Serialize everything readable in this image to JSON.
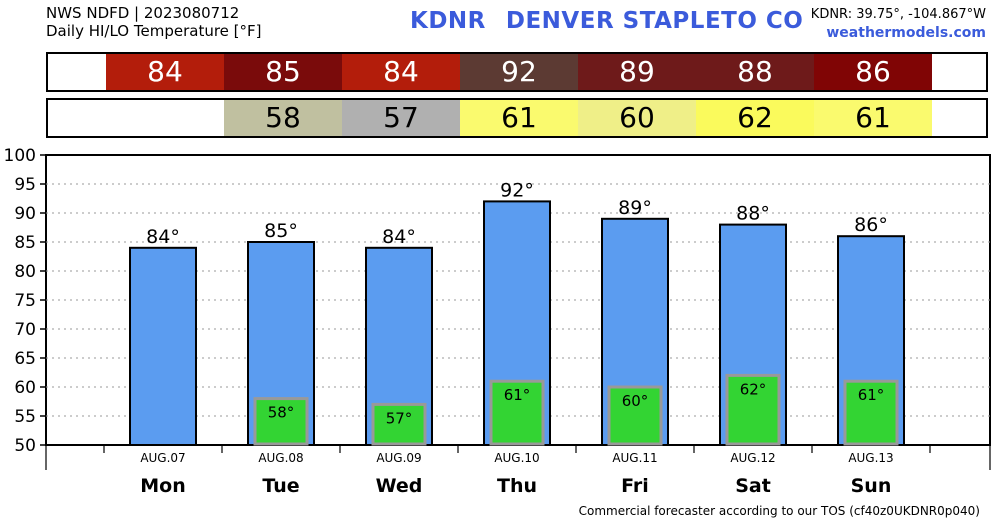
{
  "header": {
    "line1": "NWS NDFD | 2023080712",
    "line2": "Daily HI/LO Temperature [°F]",
    "station_id": "KDNR",
    "station_name": "DENVER STAPLETO CO",
    "coords": "KDNR: 39.75°, -104.867°W",
    "site": "weathermodels.com"
  },
  "strips": {
    "hi": [
      {
        "text": "84",
        "color": "#b31d0b"
      },
      {
        "text": "85",
        "color": "#7a0b0b"
      },
      {
        "text": "84",
        "color": "#b31d0b"
      },
      {
        "text": "92",
        "color": "#5c3a33"
      },
      {
        "text": "89",
        "color": "#6e1a1a"
      },
      {
        "text": "88",
        "color": "#6e1a1a"
      },
      {
        "text": "86",
        "color": "#800505"
      }
    ],
    "lo": [
      {
        "text": "",
        "color": "#ffffff"
      },
      {
        "text": "58",
        "color": "#c0c0a0"
      },
      {
        "text": "57",
        "color": "#b0b0b0"
      },
      {
        "text": "61",
        "color": "#fafa6e"
      },
      {
        "text": "60",
        "color": "#efef88"
      },
      {
        "text": "62",
        "color": "#fafa5c"
      },
      {
        "text": "61",
        "color": "#fafa6e"
      }
    ]
  },
  "footer": "Commercial forecaster according to our TOS (cf40z0UKDNR0p040)",
  "chart_data": {
    "type": "bar",
    "categories": [
      "AUG.07",
      "AUG.08",
      "AUG.09",
      "AUG.10",
      "AUG.11",
      "AUG.12",
      "AUG.13"
    ],
    "days": [
      "Mon",
      "Tue",
      "Wed",
      "Thu",
      "Fri",
      "Sat",
      "Sun"
    ],
    "series": [
      {
        "values": [
          84,
          85,
          84,
          92,
          89,
          88,
          86
        ],
        "labels": [
          "84°",
          "85°",
          "84°",
          "92°",
          "89°",
          "88°",
          "86°"
        ],
        "color": "#5b9cf0"
      },
      {
        "values": [
          null,
          58,
          57,
          61,
          60,
          62,
          61
        ],
        "labels": [
          "",
          "58°",
          "57°",
          "61°",
          "60°",
          "62°",
          "61°"
        ],
        "color": "#33d433"
      }
    ],
    "ylim": [
      50,
      100
    ],
    "yticks": [
      100,
      95,
      90,
      85,
      80,
      75,
      70,
      65,
      60,
      55,
      50
    ],
    "grid": true
  }
}
